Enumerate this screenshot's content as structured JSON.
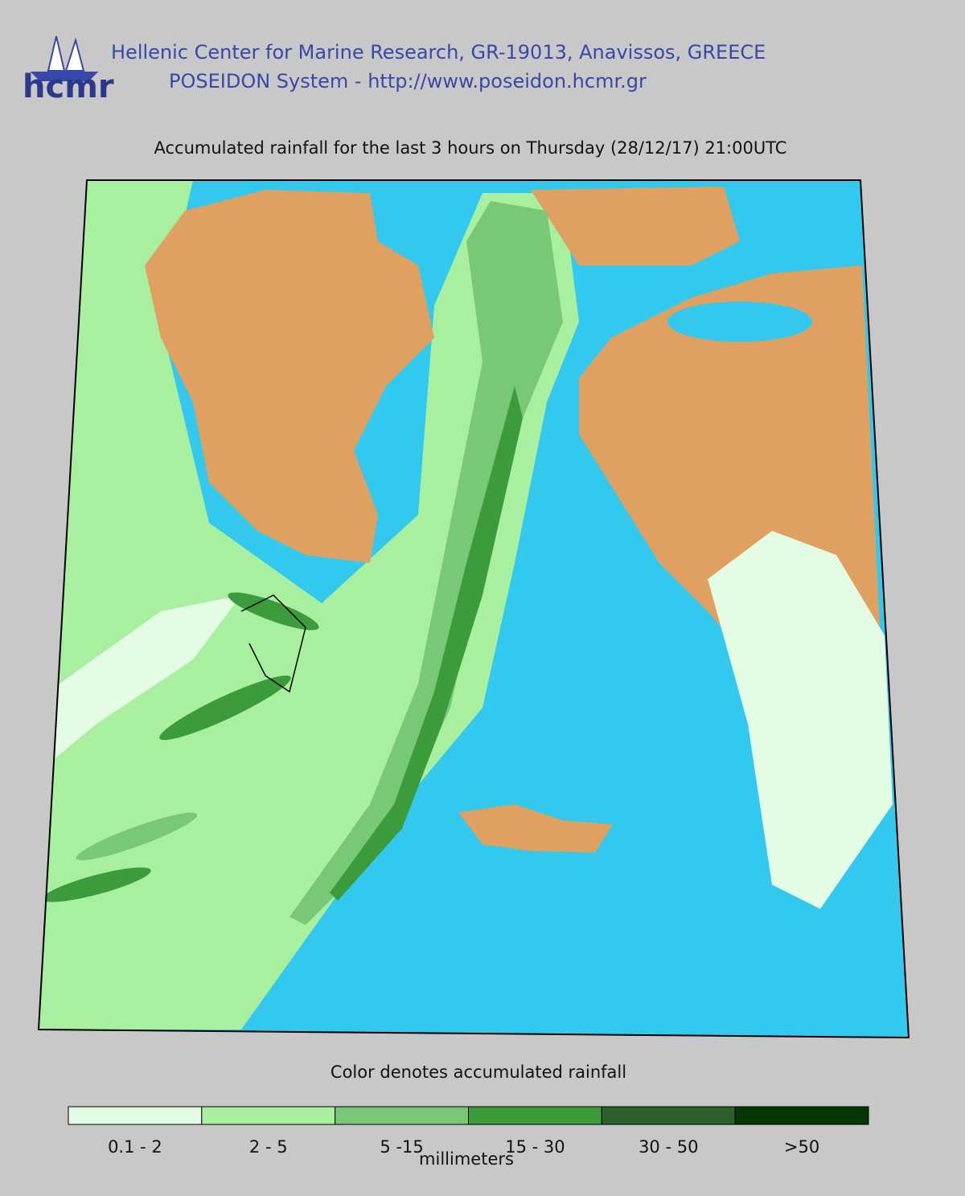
{
  "header": {
    "logo": "hcmr",
    "line1": "Hellenic Center for Marine Research, GR-19013, Anavissos, GREECE",
    "line2": "POSEIDON System - http://www.poseidon.hcmr.gr"
  },
  "title": "Accumulated rainfall for the last 3 hours on Thursday (28/12/17) 21:00UTC",
  "legend": {
    "caption": "Color denotes accumulated rainfall",
    "unit": "millimeters",
    "classes": [
      {
        "label": "0.1 - 2",
        "color": "#e4fce4"
      },
      {
        "label": "2 - 5",
        "color": "#a8f0a0"
      },
      {
        "label": "5 -15",
        "color": "#78c878"
      },
      {
        "label": "15 - 30",
        "color": "#3c9c3c"
      },
      {
        "label": "30 - 50",
        "color": "#2c602c"
      },
      {
        "label": ">50",
        "color": "#063806"
      }
    ]
  }
}
